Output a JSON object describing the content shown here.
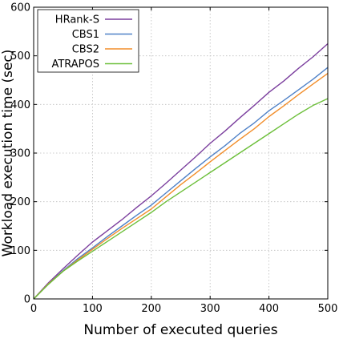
{
  "chart_data": {
    "type": "line",
    "xlabel": "Number of executed queries",
    "ylabel": "Workload execution time (sec)",
    "xlim": [
      0,
      500
    ],
    "ylim": [
      0,
      600
    ],
    "xticks": [
      0,
      100,
      200,
      300,
      400,
      500
    ],
    "yticks": [
      0,
      100,
      200,
      300,
      400,
      500,
      600
    ],
    "grid": true,
    "legend": "top-left",
    "series": [
      {
        "name": "HRank-S",
        "color": "#7b3f9e",
        "x": [
          0,
          25,
          50,
          75,
          100,
          125,
          150,
          175,
          200,
          225,
          250,
          275,
          300,
          325,
          350,
          375,
          400,
          425,
          450,
          475,
          500
        ],
        "values": [
          0,
          33,
          62,
          90,
          117,
          140,
          163,
          188,
          212,
          238,
          265,
          292,
          320,
          345,
          372,
          398,
          425,
          448,
          474,
          498,
          525
        ]
      },
      {
        "name": "CBS1",
        "color": "#4f81c7",
        "x": [
          0,
          25,
          50,
          75,
          100,
          125,
          150,
          175,
          200,
          225,
          250,
          275,
          300,
          325,
          350,
          375,
          400,
          425,
          450,
          475,
          500
        ],
        "values": [
          0,
          31,
          58,
          83,
          105,
          128,
          150,
          172,
          193,
          218,
          243,
          268,
          292,
          315,
          340,
          362,
          387,
          408,
          430,
          452,
          476
        ]
      },
      {
        "name": "CBS2",
        "color": "#f28e2b",
        "x": [
          0,
          25,
          50,
          75,
          100,
          125,
          150,
          175,
          200,
          225,
          250,
          275,
          300,
          325,
          350,
          375,
          400,
          425,
          450,
          475,
          500
        ],
        "values": [
          0,
          31,
          57,
          80,
          102,
          124,
          145,
          165,
          185,
          210,
          235,
          258,
          282,
          305,
          328,
          350,
          375,
          397,
          420,
          442,
          464
        ]
      },
      {
        "name": "ATRAPOS",
        "color": "#6cbf3a",
        "x": [
          0,
          25,
          50,
          75,
          100,
          125,
          150,
          175,
          200,
          225,
          250,
          275,
          300,
          325,
          350,
          375,
          400,
          425,
          450,
          475,
          500
        ],
        "values": [
          0,
          30,
          57,
          78,
          98,
          118,
          138,
          158,
          178,
          200,
          220,
          240,
          260,
          280,
          300,
          320,
          340,
          360,
          380,
          398,
          412
        ]
      }
    ]
  }
}
